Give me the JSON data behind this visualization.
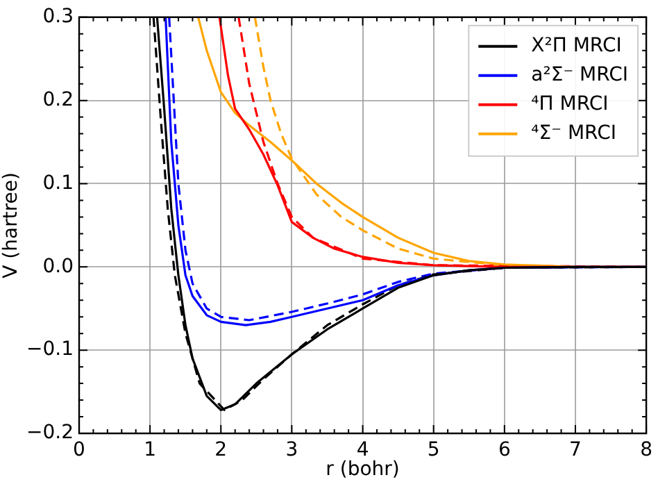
{
  "chart_data": {
    "type": "line",
    "xlabel": "r (bohr)",
    "ylabel": "V (hartree)",
    "xlim": [
      0,
      8
    ],
    "ylim": [
      -0.2,
      0.3
    ],
    "xticks": [
      0,
      1,
      2,
      3,
      4,
      5,
      6,
      7,
      8
    ],
    "yticks": [
      {
        "value": -0.2,
        "label": "−0.2"
      },
      {
        "value": -0.1,
        "label": "−0.1"
      },
      {
        "value": 0,
        "label": "0.0"
      },
      0.1,
      0.2,
      0.3
    ],
    "grid": true,
    "legend": "top right",
    "marker": "none",
    "series": [
      {
        "name": "X²Π MRCI",
        "color": "#000000",
        "line_style": "solid",
        "x": [
          1.1,
          1.2,
          1.3,
          1.4,
          1.5,
          1.6,
          1.8,
          2.0,
          2.2,
          2.5,
          3.0,
          3.5,
          4.0,
          4.5,
          5.0,
          5.5,
          6.0,
          7.0,
          8.0
        ],
        "values": [
          0.3,
          0.19,
          0.07,
          -0.01,
          -0.07,
          -0.11,
          -0.155,
          -0.172,
          -0.165,
          -0.14,
          -0.105,
          -0.075,
          -0.05,
          -0.025,
          -0.01,
          -0.004,
          -0.001,
          0,
          0
        ]
      },
      {
        "name": "a²Σ⁻ MRCI",
        "color": "#0000ff",
        "line_style": "solid",
        "x": [
          1.22,
          1.3,
          1.4,
          1.5,
          1.6,
          1.8,
          2.0,
          2.35,
          2.7,
          3.0,
          3.5,
          4.0,
          4.5,
          5.0,
          5.5,
          6.0,
          7.0,
          8.0
        ],
        "values": [
          0.3,
          0.15,
          0.05,
          -0.01,
          -0.035,
          -0.058,
          -0.066,
          -0.07,
          -0.066,
          -0.06,
          -0.05,
          -0.04,
          -0.022,
          -0.01,
          -0.004,
          -0.001,
          0,
          0
        ]
      },
      {
        "name": "⁴Π MRCI",
        "color": "#ff0000",
        "line_style": "solid",
        "x": [
          1.98,
          2.1,
          2.2,
          2.4,
          2.6,
          2.8,
          3.0,
          3.3,
          3.6,
          4.0,
          4.5,
          5.0,
          6.0,
          8.0
        ],
        "values": [
          0.3,
          0.23,
          0.19,
          0.165,
          0.135,
          0.098,
          0.054,
          0.035,
          0.022,
          0.012,
          0.005,
          0.002,
          0,
          0
        ]
      },
      {
        "name": "⁴Σ⁻ MRCI",
        "color": "#ffa500",
        "line_style": "solid",
        "x": [
          1.68,
          1.8,
          2.0,
          2.2,
          2.4,
          2.7,
          3.0,
          3.35,
          3.7,
          4.0,
          4.5,
          5.0,
          5.5,
          6.0,
          7.0,
          8.0
        ],
        "values": [
          0.3,
          0.26,
          0.21,
          0.185,
          0.17,
          0.15,
          0.128,
          0.1,
          0.077,
          0.06,
          0.035,
          0.017,
          0.007,
          0.003,
          0,
          0
        ]
      },
      {
        "color": "#000000",
        "line_style": "dashed",
        "x": [
          1.05,
          1.15,
          1.25,
          1.35,
          1.5,
          1.7,
          2.05,
          2.3,
          2.6,
          3.0,
          3.5,
          4.0,
          4.5,
          5.0,
          6.0,
          8.0
        ],
        "values": [
          0.3,
          0.18,
          0.07,
          -0.01,
          -0.08,
          -0.14,
          -0.172,
          -0.16,
          -0.135,
          -0.105,
          -0.07,
          -0.045,
          -0.022,
          -0.009,
          -0.001,
          0
        ]
      },
      {
        "color": "#0000ff",
        "line_style": "dashed",
        "x": [
          1.27,
          1.4,
          1.5,
          1.6,
          1.8,
          2.0,
          2.4,
          3.0,
          3.5,
          4.0,
          4.5,
          5.0,
          6.0,
          8.0
        ],
        "values": [
          0.3,
          0.1,
          0.02,
          -0.02,
          -0.05,
          -0.06,
          -0.064,
          -0.054,
          -0.044,
          -0.033,
          -0.018,
          -0.008,
          -0.001,
          0
        ]
      },
      {
        "color": "#ff0000",
        "line_style": "dashed",
        "x": [
          2.25,
          2.4,
          2.6,
          2.8,
          3.0,
          3.3,
          4.0,
          5.0,
          8.0
        ],
        "values": [
          0.3,
          0.22,
          0.15,
          0.1,
          0.06,
          0.035,
          0.01,
          0.002,
          0
        ]
      },
      {
        "color": "#ffa500",
        "line_style": "dashed",
        "x": [
          2.48,
          2.6,
          2.7,
          2.85,
          3.0,
          3.35,
          3.7,
          4.0,
          4.5,
          5.0,
          6.0,
          7.0,
          8.0
        ],
        "values": [
          0.3,
          0.24,
          0.2,
          0.16,
          0.13,
          0.087,
          0.06,
          0.044,
          0.022,
          0.01,
          0.002,
          0,
          0
        ]
      }
    ]
  }
}
